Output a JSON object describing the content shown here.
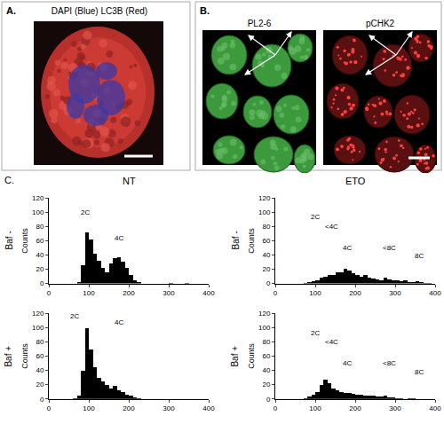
{
  "figure": {
    "panels": [
      {
        "label": "A.",
        "caption": "DAPI (Blue) LC3B (Red)"
      },
      {
        "label": "B.",
        "images": [
          "PL2-6",
          "pCHK2"
        ]
      },
      {
        "label": "C."
      }
    ]
  },
  "chart_data": [
    {
      "type": "histogram",
      "title": "NT",
      "row_label": "Baf -",
      "y_label": "Counts",
      "color": "#000000",
      "bins": [
        0,
        10,
        20,
        30,
        40,
        50,
        60,
        70,
        80,
        90,
        100,
        110,
        120,
        130,
        140,
        150,
        160,
        170,
        180,
        190,
        200,
        210,
        220,
        230,
        240,
        250,
        260,
        270,
        280,
        290,
        300,
        310,
        320,
        330,
        340,
        350,
        360,
        370,
        380,
        390,
        400
      ],
      "counts": [
        0,
        0,
        0,
        0,
        0,
        0,
        0,
        2,
        25,
        72,
        62,
        42,
        32,
        22,
        16,
        28,
        35,
        37,
        30,
        22,
        12,
        4,
        2,
        0,
        0,
        0,
        0,
        0,
        0,
        0,
        1,
        0,
        0,
        0,
        1,
        0,
        0,
        0,
        0,
        0
      ],
      "xlim": [
        0,
        400
      ],
      "ylim": [
        0,
        120
      ],
      "xticks": [
        0,
        100,
        200,
        300,
        400
      ],
      "yticks": [
        0,
        20,
        40,
        60,
        80,
        100,
        120
      ],
      "grid": false,
      "annotations": [
        {
          "text": "2C",
          "x": 90,
          "y": 92
        },
        {
          "text": "4C",
          "x": 175,
          "y": 55
        }
      ]
    },
    {
      "type": "histogram",
      "title": "ETO",
      "row_label": "Baf -",
      "y_label": "Counts",
      "color": "#000000",
      "bins": [
        0,
        10,
        20,
        30,
        40,
        50,
        60,
        70,
        80,
        90,
        100,
        110,
        120,
        130,
        140,
        150,
        160,
        170,
        180,
        190,
        200,
        210,
        220,
        230,
        240,
        250,
        260,
        270,
        280,
        290,
        300,
        310,
        320,
        330,
        340,
        350,
        360,
        370,
        380,
        390,
        400
      ],
      "counts": [
        0,
        0,
        0,
        0,
        0,
        0,
        0,
        1,
        2,
        3,
        5,
        8,
        10,
        12,
        12,
        15,
        16,
        20,
        18,
        14,
        12,
        10,
        12,
        8,
        7,
        6,
        5,
        8,
        6,
        4,
        5,
        3,
        4,
        2,
        2,
        3,
        2,
        1,
        1,
        0
      ],
      "xlim": [
        0,
        400
      ],
      "ylim": [
        0,
        120
      ],
      "xticks": [
        0,
        100,
        200,
        300,
        400
      ],
      "yticks": [
        0,
        20,
        40,
        60,
        80,
        100,
        120
      ],
      "grid": false,
      "annotations": [
        {
          "text": "2C",
          "x": 100,
          "y": 85
        },
        {
          "text": "<4C",
          "x": 140,
          "y": 72
        },
        {
          "text": "4C",
          "x": 180,
          "y": 42
        },
        {
          "text": "<8C",
          "x": 285,
          "y": 42
        },
        {
          "text": "8C",
          "x": 360,
          "y": 30
        }
      ]
    },
    {
      "type": "histogram",
      "row_label": "Baf +",
      "y_label": "Counts",
      "color": "#000000",
      "bins": [
        0,
        10,
        20,
        30,
        40,
        50,
        60,
        70,
        80,
        90,
        100,
        110,
        120,
        130,
        140,
        150,
        160,
        170,
        180,
        190,
        200,
        210,
        220,
        230,
        240,
        250,
        260,
        270,
        280,
        290,
        300,
        310,
        320,
        330,
        340,
        350,
        360,
        370,
        380,
        390,
        400
      ],
      "counts": [
        0,
        0,
        0,
        0,
        0,
        0,
        1,
        5,
        40,
        100,
        70,
        45,
        30,
        25,
        20,
        15,
        18,
        12,
        10,
        6,
        4,
        2,
        1,
        0,
        0,
        0,
        0,
        0,
        0,
        0,
        0,
        0,
        0,
        0,
        0,
        0,
        0,
        0,
        0,
        0
      ],
      "xlim": [
        0,
        400
      ],
      "ylim": [
        0,
        120
      ],
      "xticks": [
        0,
        100,
        200,
        300,
        400
      ],
      "yticks": [
        0,
        20,
        40,
        60,
        80,
        100,
        120
      ],
      "grid": false,
      "annotations": [
        {
          "text": "2C",
          "x": 65,
          "y": 108
        },
        {
          "text": "4C",
          "x": 175,
          "y": 100
        }
      ]
    },
    {
      "type": "histogram",
      "row_label": "Baf +",
      "y_label": "Counts",
      "color": "#000000",
      "bins": [
        0,
        10,
        20,
        30,
        40,
        50,
        60,
        70,
        80,
        90,
        100,
        110,
        120,
        130,
        140,
        150,
        160,
        170,
        180,
        190,
        200,
        210,
        220,
        230,
        240,
        250,
        260,
        270,
        280,
        290,
        300,
        310,
        320,
        330,
        340,
        350,
        360,
        370,
        380,
        390,
        400
      ],
      "counts": [
        0,
        0,
        0,
        0,
        0,
        0,
        0,
        1,
        3,
        6,
        10,
        20,
        27,
        22,
        15,
        12,
        10,
        8,
        8,
        7,
        6,
        6,
        5,
        4,
        4,
        3,
        3,
        4,
        2,
        2,
        1,
        1,
        0,
        1,
        1,
        0,
        0,
        0,
        0,
        0
      ],
      "xlim": [
        0,
        400
      ],
      "ylim": [
        0,
        120
      ],
      "xticks": [
        0,
        100,
        200,
        300,
        400
      ],
      "yticks": [
        0,
        20,
        40,
        60,
        80,
        100,
        120
      ],
      "grid": false,
      "annotations": [
        {
          "text": "2C",
          "x": 100,
          "y": 85
        },
        {
          "text": "<4C",
          "x": 140,
          "y": 72
        },
        {
          "text": "4C",
          "x": 180,
          "y": 42
        },
        {
          "text": "<8C",
          "x": 285,
          "y": 42
        },
        {
          "text": "8C",
          "x": 360,
          "y": 30
        }
      ]
    }
  ]
}
